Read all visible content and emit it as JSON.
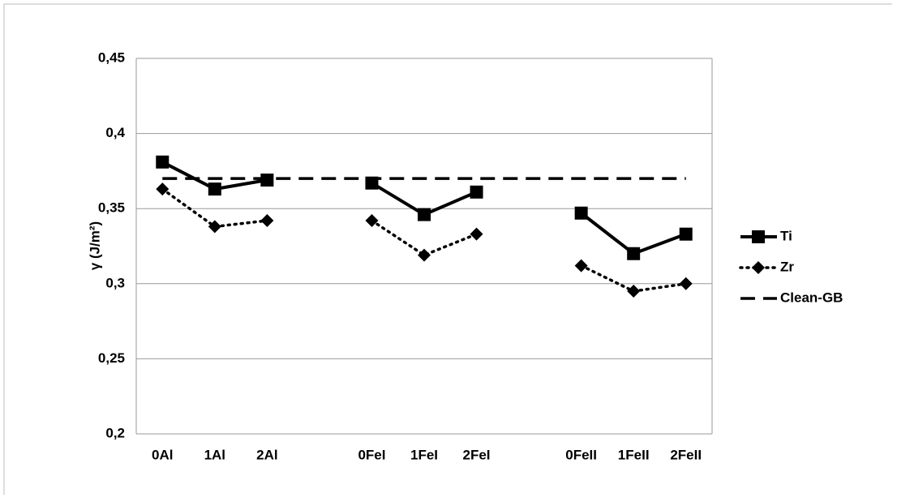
{
  "chart_data": {
    "type": "line",
    "y_label": "γ (J/m²)",
    "categories": [
      "0Al",
      "1Al",
      "2Al",
      null,
      "0FeI",
      "1FeI",
      "2FeI",
      null,
      "0FeII",
      "1FeII",
      "2FeII"
    ],
    "series": [
      {
        "name": "Ti",
        "color": "#000000",
        "style": "solid",
        "marker": "square",
        "values": [
          0.381,
          0.363,
          0.369,
          null,
          0.367,
          0.346,
          0.361,
          null,
          0.347,
          0.32,
          0.333
        ]
      },
      {
        "name": "Zr",
        "color": "#000000",
        "style": "dotted",
        "marker": "diamond",
        "values": [
          0.363,
          0.338,
          0.342,
          null,
          0.342,
          0.319,
          0.333,
          null,
          0.312,
          0.295,
          0.3
        ]
      },
      {
        "name": "Clean-GB",
        "color": "#000000",
        "style": "dashed",
        "marker": "none",
        "values": [
          0.37,
          0.37,
          0.37,
          0.37,
          0.37,
          0.37,
          0.37,
          0.37,
          0.37,
          0.37,
          0.37
        ]
      }
    ],
    "ylim": [
      0.2,
      0.45
    ],
    "yticks": [
      {
        "value": 0.2,
        "label": "0,2"
      },
      {
        "value": 0.25,
        "label": "0,25"
      },
      {
        "value": 0.3,
        "label": "0,3"
      },
      {
        "value": 0.35,
        "label": "0,35"
      },
      {
        "value": 0.4,
        "label": "0,4"
      },
      {
        "value": 0.45,
        "label": "0,45"
      }
    ],
    "grid": true,
    "legend": "right"
  }
}
